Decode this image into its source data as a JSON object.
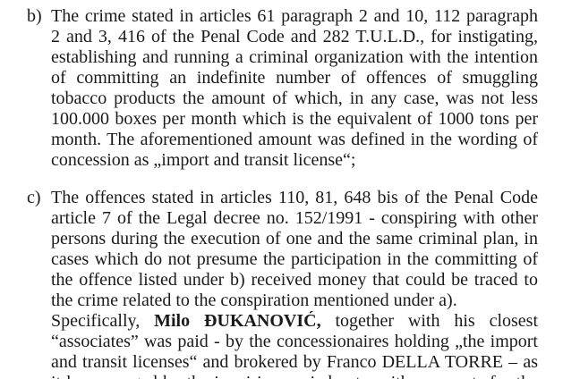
{
  "page": {
    "background_color": "#ffffff",
    "text_color": "#1a1a1a"
  },
  "document": {
    "paragraphs": [
      {
        "label": "b)",
        "lines": [
          {
            "text": "The crime stated in articles 61 paragraph 2 and 10, 112 paragraph 1,",
            "justify": true
          },
          {
            "text": "2 and 3, 416 of the Penal Code and 282 T.U.L.D., for instigating,",
            "justify": true
          },
          {
            "text": "establishing and running a criminal organization with the intention",
            "justify": true
          },
          {
            "text": "of committing an indefinite number of offences of smuggling foreign",
            "justify": true
          },
          {
            "text": "tobacco products the amount of which, in any case, was not less than",
            "justify": true
          },
          {
            "text": "100.000 boxes per month which is the equivalent of 1000 tons per",
            "justify": true
          },
          {
            "text": "month. The aforementioned amount was defined in the wording of",
            "justify": true
          },
          {
            "text": "concession as „import and transit license“;",
            "justify": false
          }
        ]
      },
      {
        "label": "c)",
        "lines": [
          {
            "text": "The offences stated in articles 110, 81, 648 bis of the Penal Code and",
            "justify": true
          },
          {
            "text": "article 7 of the Legal decree no. 152/1991 - conspiring with other",
            "justify": true
          },
          {
            "text": "persons during the execution of one and the same criminal plan, in",
            "justify": true
          },
          {
            "text": "cases which do not presume the participation in the committing of",
            "justify": true
          },
          {
            "text": "the offence listed under b) received money that could be traced to",
            "justify": true
          },
          {
            "text": "the crime related to the conspiration mentioned under a).",
            "justify": false
          },
          {
            "segments": [
              {
                "text": "Specifically, ",
                "bold": false
              },
              {
                "text": "Milo ĐUKANOVIĆ,",
                "bold": true
              },
              {
                "text": " together with his closest",
                "bold": false
              }
            ],
            "justify": true
          },
          {
            "text": "“associates” was paid - by the concessionaires holding „the import",
            "justify": true
          },
          {
            "text": "and transit licenses“ and brokered by Franco DELLA TORRE – as",
            "justify": true
          },
          {
            "text": "it has emerged by the inquiries carried out - with payments for the",
            "justify": true,
            "partial": true
          }
        ]
      }
    ]
  }
}
